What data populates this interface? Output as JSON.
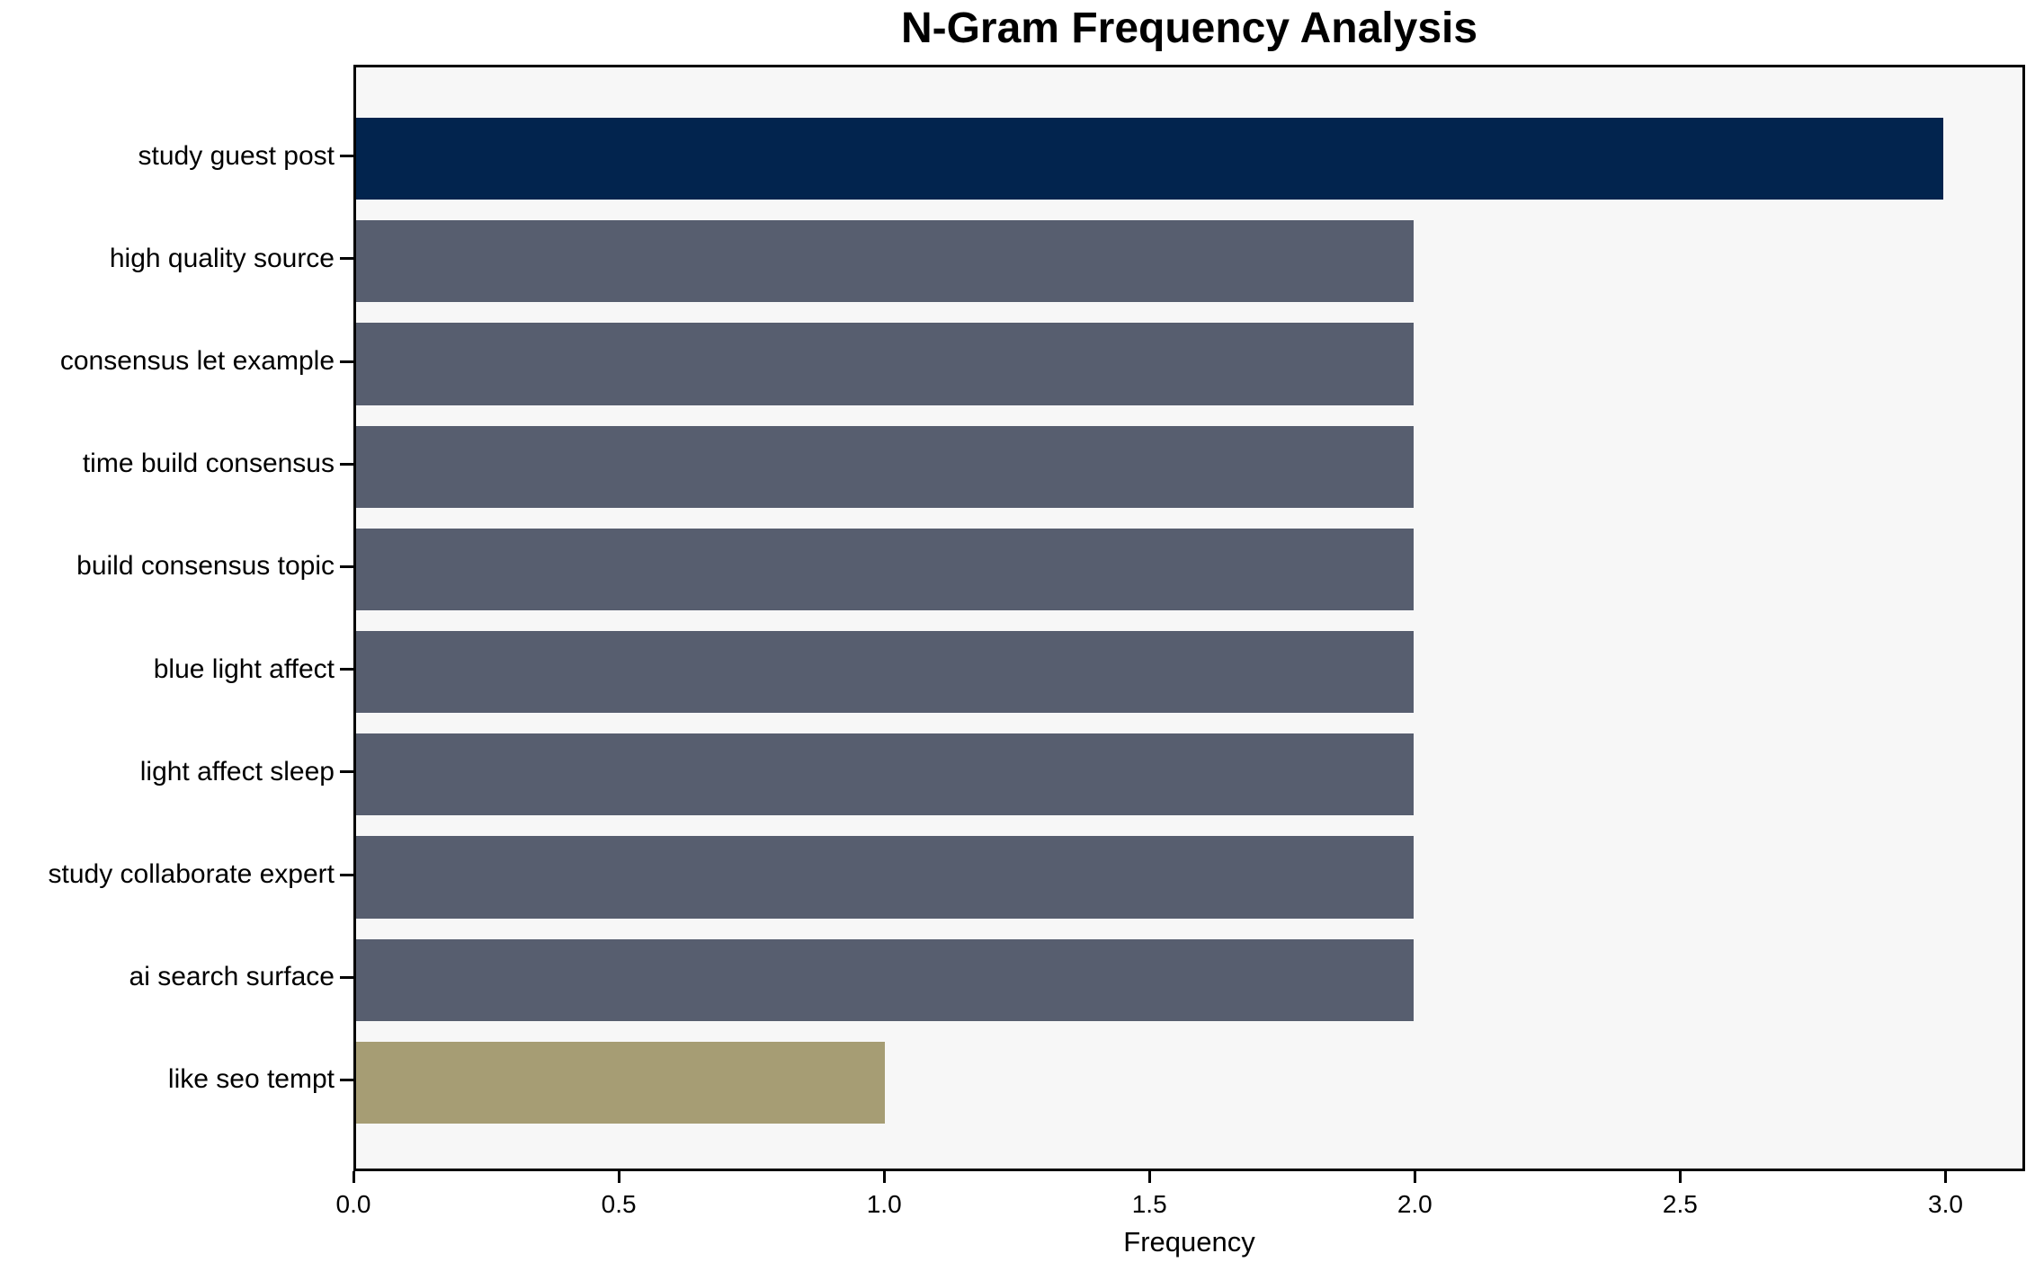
{
  "chart_data": {
    "type": "bar",
    "orientation": "horizontal",
    "title": "N-Gram Frequency Analysis",
    "xlabel": "Frequency",
    "ylabel": "",
    "categories": [
      "study guest post",
      "high quality source",
      "consensus let example",
      "time build consensus",
      "build consensus topic",
      "blue light affect",
      "light affect sleep",
      "study collaborate expert",
      "ai search surface",
      "like seo tempt"
    ],
    "values": [
      3,
      2,
      2,
      2,
      2,
      2,
      2,
      2,
      2,
      1
    ],
    "bar_colors": [
      "#02244e",
      "#575e6f",
      "#575e6f",
      "#575e6f",
      "#575e6f",
      "#575e6f",
      "#575e6f",
      "#575e6f",
      "#575e6f",
      "#a69d74"
    ],
    "xticks": [
      "0.0",
      "0.5",
      "1.0",
      "1.5",
      "2.0",
      "2.5",
      "3.0"
    ],
    "xtick_values": [
      0,
      0.5,
      1,
      1.5,
      2,
      2.5,
      3
    ],
    "xlim": [
      0,
      3.15
    ],
    "grid": false,
    "legend_position": "none",
    "plot_background": "#f7f7f7",
    "figure_background": "#ffffff",
    "spine_color": "#000000"
  }
}
